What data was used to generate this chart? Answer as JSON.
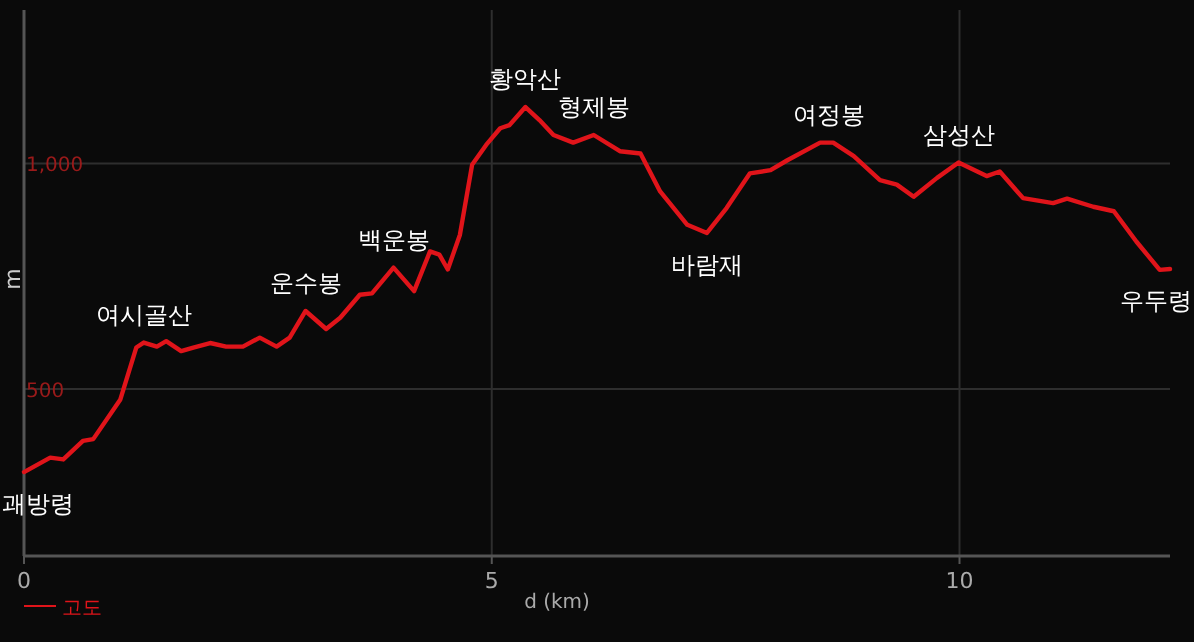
{
  "chart_data": {
    "type": "line",
    "xlabel": "d (km)",
    "ylabel": "m",
    "xlim": [
      0,
      12.25
    ],
    "ylim": [
      130,
      1340
    ],
    "xticks": [
      0,
      5,
      10
    ],
    "yticks": [
      500,
      {
        "value": 1000,
        "label": "1,000"
      }
    ],
    "grid": true,
    "legend": "bottom left",
    "marker": "none",
    "line_style": "solid",
    "series": [
      {
        "name": "고도",
        "color": "#e0141a",
        "x": [
          0,
          0.28,
          0.42,
          0.63,
          0.74,
          1.03,
          1.2,
          1.28,
          1.42,
          1.52,
          1.68,
          1.81,
          1.99,
          2.16,
          2.34,
          2.52,
          2.7,
          2.84,
          3.01,
          3.23,
          3.38,
          3.59,
          3.72,
          3.95,
          4.17,
          4.34,
          4.44,
          4.53,
          4.66,
          4.79,
          4.94,
          5.09,
          5.19,
          5.36,
          5.51,
          5.66,
          5.87,
          6.09,
          6.37,
          6.59,
          6.8,
          7.09,
          7.3,
          7.51,
          7.76,
          7.98,
          8.16,
          8.51,
          8.65,
          8.87,
          9.15,
          9.33,
          9.51,
          9.76,
          9.99,
          10.29,
          10.43,
          10.68,
          11.0,
          11.15,
          11.43,
          11.65,
          11.89,
          12.14,
          12.25
        ],
        "values": [
          316,
          348,
          344,
          385,
          389,
          477,
          592,
          603,
          594,
          606,
          584,
          592,
          602,
          594,
          594,
          614,
          594,
          614,
          673,
          633,
          658,
          709,
          712,
          769,
          717,
          805,
          798,
          765,
          842,
          997,
          1041,
          1078,
          1085,
          1125,
          1096,
          1063,
          1046,
          1063,
          1027,
          1022,
          938,
          864,
          846,
          901,
          978,
          985,
          1007,
          1046,
          1046,
          1016,
          963,
          953,
          926,
          968,
          1002,
          972,
          982,
          923,
          912,
          922,
          904,
          894,
          827,
          764,
          766
        ]
      }
    ],
    "annotations": [
      {
        "text": "괘방령",
        "x": 0,
        "y": 316
      },
      {
        "text": "여시골산",
        "x": 1.28,
        "y": 603
      },
      {
        "text": "운수봉",
        "x": 3.01,
        "y": 673
      },
      {
        "text": "백운봉",
        "x": 3.95,
        "y": 769
      },
      {
        "text": "황악산",
        "x": 5.36,
        "y": 1125
      },
      {
        "text": "형제봉",
        "x": 6.09,
        "y": 1063
      },
      {
        "text": "바람재",
        "x": 7.3,
        "y": 846
      },
      {
        "text": "여정봉",
        "x": 8.6,
        "y": 1046
      },
      {
        "text": "삼성산",
        "x": 9.99,
        "y": 1002
      },
      {
        "text": "우두령",
        "x": 12.25,
        "y": 766
      }
    ]
  }
}
